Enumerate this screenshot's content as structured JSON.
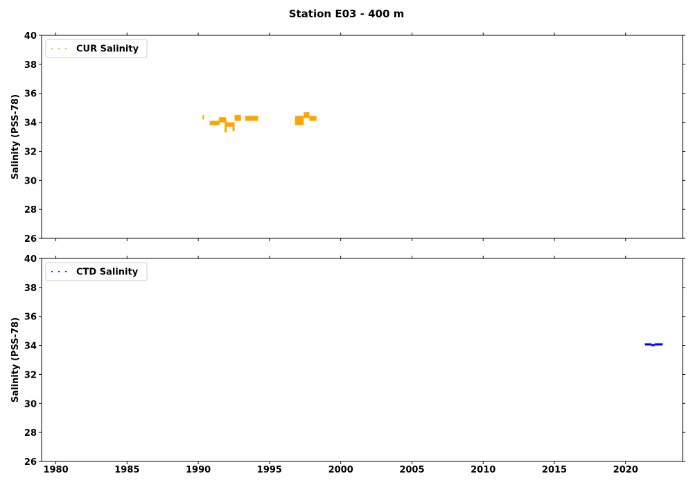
{
  "chart_data": {
    "title": "Station E03 - 400 m",
    "panels": [
      {
        "type": "scatter",
        "ylabel": "Salinity (PSS-78)",
        "ylim": [
          26,
          40
        ],
        "yticks": [
          26,
          28,
          30,
          32,
          34,
          36,
          38,
          40
        ],
        "xlim": [
          1979,
          2024
        ],
        "xticks": [
          1980,
          1985,
          1990,
          1995,
          2000,
          2005,
          2010,
          2015,
          2020
        ],
        "show_xtick_labels": false,
        "legend_position": "top-left",
        "grid": false,
        "series": [
          {
            "name": "CUR Salinity",
            "color": "#FFA500",
            "segments": [
              {
                "x_start": 1990.3,
                "x_end": 1990.4,
                "y_min": 34.2,
                "y_max": 34.5
              },
              {
                "x_start": 1990.8,
                "x_end": 1991.5,
                "y_min": 33.8,
                "y_max": 34.1
              },
              {
                "x_start": 1991.45,
                "x_end": 1991.95,
                "y_min": 34.0,
                "y_max": 34.35
              },
              {
                "x_start": 1991.85,
                "x_end": 1992.0,
                "y_min": 33.3,
                "y_max": 34.1
              },
              {
                "x_start": 1991.95,
                "x_end": 1992.55,
                "y_min": 33.7,
                "y_max": 34.0
              },
              {
                "x_start": 1992.4,
                "x_end": 1992.55,
                "y_min": 33.4,
                "y_max": 33.9
              },
              {
                "x_start": 1992.55,
                "x_end": 1993.0,
                "y_min": 34.1,
                "y_max": 34.5
              },
              {
                "x_start": 1993.3,
                "x_end": 1994.2,
                "y_min": 34.1,
                "y_max": 34.45
              },
              {
                "x_start": 1996.8,
                "x_end": 1997.4,
                "y_min": 33.8,
                "y_max": 34.45
              },
              {
                "x_start": 1997.4,
                "x_end": 1997.8,
                "y_min": 34.3,
                "y_max": 34.7
              },
              {
                "x_start": 1997.8,
                "x_end": 1998.3,
                "y_min": 34.1,
                "y_max": 34.45
              }
            ]
          }
        ]
      },
      {
        "type": "scatter",
        "ylabel": "Salinity (PSS-78)",
        "ylim": [
          26,
          40
        ],
        "yticks": [
          26,
          28,
          30,
          32,
          34,
          36,
          38,
          40
        ],
        "xlim": [
          1979,
          2024
        ],
        "xticks": [
          1980,
          1985,
          1990,
          1995,
          2000,
          2005,
          2010,
          2015,
          2020
        ],
        "show_xtick_labels": true,
        "legend_position": "top-left",
        "grid": false,
        "series": [
          {
            "name": "CTD Salinity",
            "color": "#0000FF",
            "segments": [
              {
                "x_start": 2021.35,
                "x_end": 2021.8,
                "y_min": 34.0,
                "y_max": 34.15
              },
              {
                "x_start": 2021.8,
                "x_end": 2022.05,
                "y_min": 33.95,
                "y_max": 34.1
              },
              {
                "x_start": 2022.05,
                "x_end": 2022.6,
                "y_min": 34.0,
                "y_max": 34.15
              }
            ]
          }
        ]
      }
    ]
  }
}
